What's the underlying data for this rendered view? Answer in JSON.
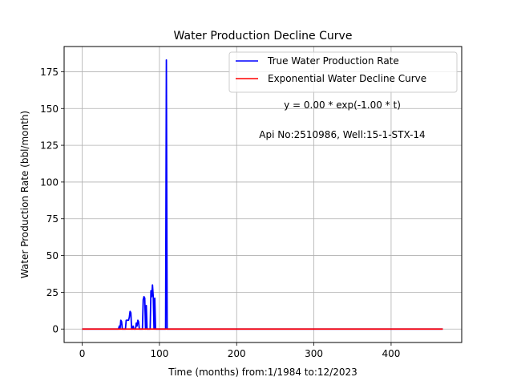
{
  "chart_data": {
    "type": "line",
    "title": "Water Production Decline Curve",
    "xlabel": "Time (months) from:1/1984 to:12/2023",
    "ylabel": "Water Production Rate (bbl/month)",
    "xlim": [
      -23.4,
      491.4
    ],
    "ylim": [
      -9.15,
      192.15
    ],
    "xticks": [
      0,
      100,
      200,
      300,
      400
    ],
    "yticks": [
      0,
      25,
      50,
      75,
      100,
      125,
      150,
      175
    ],
    "grid": true,
    "legend_position": "top-right",
    "annotations": [
      "y = 0.00 * exp(-1.00 * t)",
      "Api No:2510986, Well:15-1-STX-14"
    ],
    "series": [
      {
        "name": "True Water Production Rate",
        "color": "#0000ff",
        "points": [
          [
            0,
            0
          ],
          [
            47,
            0
          ],
          [
            48,
            2
          ],
          [
            49,
            0
          ],
          [
            50,
            6
          ],
          [
            51,
            5
          ],
          [
            52,
            0
          ],
          [
            53,
            0
          ],
          [
            54,
            0
          ],
          [
            55,
            0
          ],
          [
            56,
            0
          ],
          [
            57,
            6
          ],
          [
            58,
            6
          ],
          [
            59,
            6
          ],
          [
            60,
            6
          ],
          [
            61,
            8
          ],
          [
            62,
            12
          ],
          [
            63,
            11
          ],
          [
            64,
            0
          ],
          [
            65,
            0
          ],
          [
            66,
            2
          ],
          [
            67,
            0
          ],
          [
            68,
            0
          ],
          [
            69,
            0
          ],
          [
            70,
            4
          ],
          [
            71,
            2
          ],
          [
            72,
            6
          ],
          [
            73,
            5
          ],
          [
            74,
            0
          ],
          [
            75,
            0
          ],
          [
            76,
            0
          ],
          [
            77,
            0
          ],
          [
            78,
            0
          ],
          [
            79,
            20
          ],
          [
            80,
            22
          ],
          [
            81,
            21
          ],
          [
            82,
            0
          ],
          [
            83,
            16
          ],
          [
            84,
            0
          ],
          [
            85,
            0
          ],
          [
            86,
            0
          ],
          [
            87,
            0
          ],
          [
            88,
            0
          ],
          [
            89,
            26
          ],
          [
            90,
            22
          ],
          [
            91,
            30
          ],
          [
            92,
            22
          ],
          [
            93,
            0
          ],
          [
            94,
            21
          ],
          [
            95,
            0
          ],
          [
            96,
            0
          ],
          [
            97,
            0
          ],
          [
            98,
            0
          ],
          [
            99,
            0
          ],
          [
            100,
            0
          ],
          [
            101,
            0
          ],
          [
            102,
            0
          ],
          [
            103,
            0
          ],
          [
            104,
            0
          ],
          [
            105,
            0
          ],
          [
            106,
            0
          ],
          [
            107,
            0
          ],
          [
            108,
            0
          ],
          [
            109,
            183
          ],
          [
            110,
            0
          ],
          [
            467,
            0
          ]
        ]
      },
      {
        "name": "Exponential Water Decline Curve",
        "color": "#ff0000",
        "points": [
          [
            0,
            0
          ],
          [
            467,
            0
          ]
        ]
      }
    ]
  }
}
